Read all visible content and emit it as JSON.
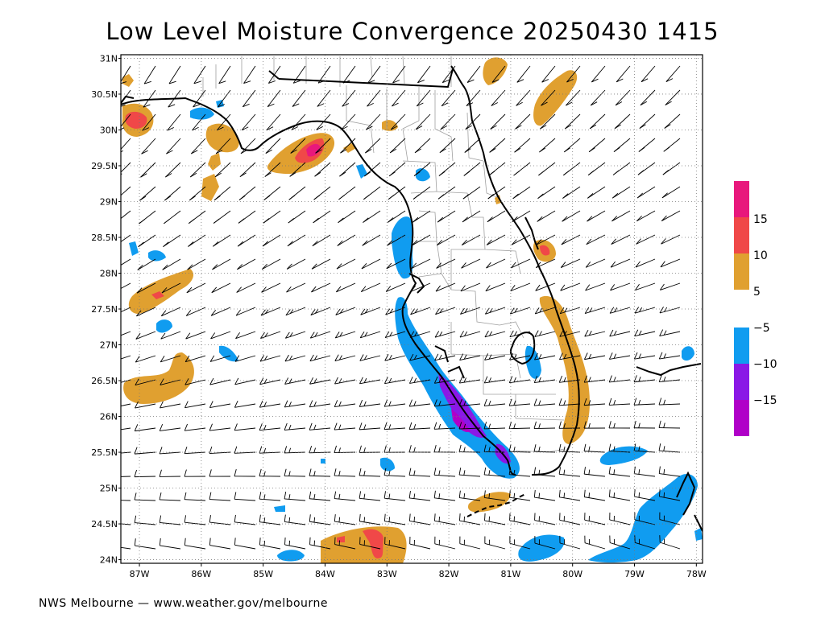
{
  "title": "Low Level Moisture Convergence 20250430 1415",
  "credit": "NWS Melbourne — www.weather.gov/melbourne",
  "lat_labels": [
    "31N",
    "30.5N",
    "30N",
    "29.5N",
    "29N",
    "28.5N",
    "28N",
    "27.5N",
    "27N",
    "26.5N",
    "26N",
    "25.5N",
    "25N",
    "24.5N",
    "24N"
  ],
  "lon_labels": [
    "87W",
    "86W",
    "85W",
    "84W",
    "83W",
    "82W",
    "81W",
    "80W",
    "79W",
    "78W"
  ],
  "colorbar": {
    "positive": [
      {
        "color": "#e0a030",
        "label": "5"
      },
      {
        "color": "#f04848",
        "label": "10"
      },
      {
        "color": "#e8187c",
        "label": "15"
      }
    ],
    "negative": [
      {
        "color": "#109cf0",
        "label": "−5"
      },
      {
        "color": "#8a18e6",
        "label": "−10"
      },
      {
        "color": "#b000c8",
        "label": "−15"
      }
    ]
  },
  "colors": {
    "conv5": "#e0a030",
    "conv10": "#f04848",
    "conv15": "#e8187c",
    "div5": "#109cf0",
    "div10": "#8a18e6",
    "div15": "#b000c8",
    "coast": "#000000",
    "counties": "#a0a0a0",
    "grid": "#777777",
    "barb": "#000000"
  }
}
